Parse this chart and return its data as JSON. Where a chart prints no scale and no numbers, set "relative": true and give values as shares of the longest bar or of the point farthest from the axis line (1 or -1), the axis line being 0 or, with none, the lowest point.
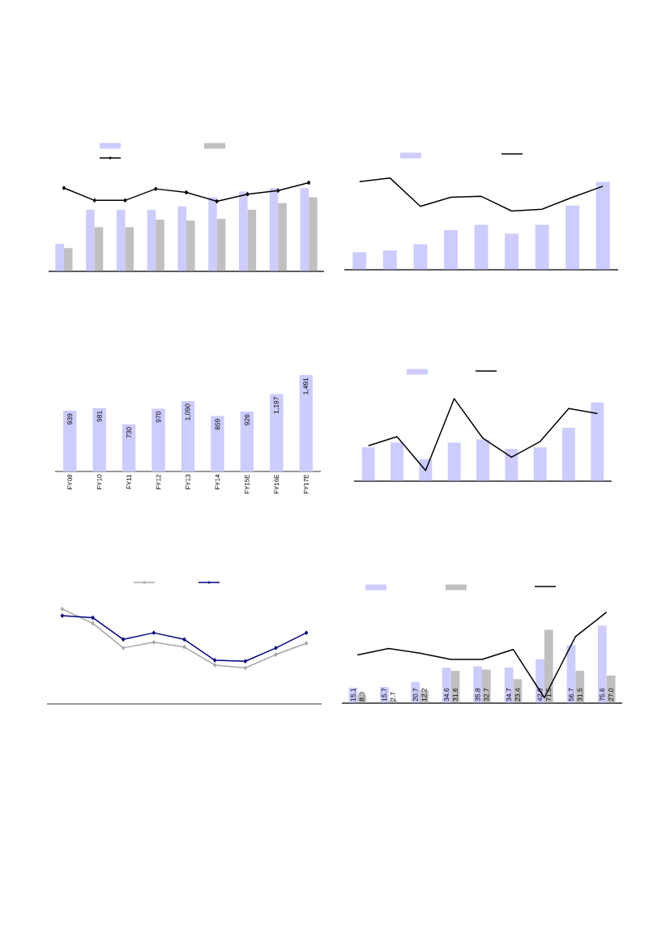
{
  "chart_data": [
    {
      "type": "bar",
      "relative": true,
      "categories": [
        null,
        null,
        null,
        null,
        null,
        null,
        null,
        null,
        null
      ],
      "series": [
        {
          "color": "#ccccff",
          "values": [
            0.33,
            0.74,
            0.74,
            0.74,
            0.78,
            0.89,
            0.96,
            1.0,
            1.0
          ]
        },
        {
          "color": "#c0c0c0",
          "values": [
            0.28,
            0.53,
            0.53,
            0.62,
            0.61,
            0.63,
            0.74,
            0.82,
            0.89
          ]
        }
      ]
    },
    {
      "type": "line",
      "relative": true,
      "marker": "diamond",
      "categories": [
        null,
        null,
        null,
        null,
        null,
        null,
        null,
        null,
        null
      ],
      "series": [
        {
          "color": "#000000",
          "values": [
            0.94,
            0.8,
            0.8,
            0.93,
            0.89,
            0.79,
            0.87,
            0.91,
            1.0
          ]
        }
      ]
    },
    {
      "type": "bar",
      "relative": true,
      "categories": [
        null,
        null,
        null,
        null,
        null,
        null,
        null,
        null,
        null
      ],
      "series": [
        {
          "color": "#ccccff",
          "values": [
            0.2,
            0.22,
            0.29,
            0.45,
            0.51,
            0.41,
            0.51,
            0.73,
            1.0
          ]
        }
      ]
    },
    {
      "type": "line",
      "relative": true,
      "categories": [
        null,
        null,
        null,
        null,
        null,
        null,
        null,
        null,
        null
      ],
      "series": [
        {
          "color": "#000000",
          "values": [
            0.96,
            1.0,
            0.69,
            0.79,
            0.8,
            0.64,
            0.66,
            0.79,
            0.91
          ]
        }
      ]
    },
    {
      "type": "bar",
      "tick_labels": "x",
      "categories": [
        "FY09",
        "FY10",
        "FY11",
        "FY12",
        "FY13",
        "FY14",
        "FY15E",
        "FY16E",
        "FY17E"
      ],
      "series": [
        {
          "color": "#ccccff",
          "values": [
            939,
            981,
            730,
            970,
            1090,
            859,
            926,
            1197,
            1491
          ],
          "value_labels": [
            "939",
            "981",
            "730",
            "970",
            "1,090",
            "859",
            "926",
            "1,197",
            "1,491"
          ]
        }
      ]
    },
    {
      "type": "bar",
      "relative": true,
      "categories": [
        null,
        null,
        null,
        null,
        null,
        null,
        null,
        null,
        null
      ],
      "series": [
        {
          "color": "#ccccff",
          "values": [
            0.43,
            0.49,
            0.28,
            0.49,
            0.53,
            0.41,
            0.43,
            0.68,
            1.0
          ]
        }
      ]
    },
    {
      "type": "line",
      "relative": true,
      "categories": [
        null,
        null,
        null,
        null,
        null,
        null,
        null,
        null,
        null
      ],
      "series": [
        {
          "color": "#000000",
          "values": [
            0.43,
            0.54,
            0.13,
            1.0,
            0.52,
            0.29,
            0.48,
            0.88,
            0.82
          ]
        }
      ]
    },
    {
      "type": "line",
      "relative": true,
      "marker": "diamond",
      "categories": [
        null,
        null,
        null,
        null,
        null,
        null,
        null,
        null,
        null
      ],
      "series": [
        {
          "color": "#a6a6a6",
          "values": [
            1.0,
            0.85,
            0.59,
            0.65,
            0.6,
            0.41,
            0.38,
            0.52,
            0.64
          ]
        },
        {
          "color": "#000080",
          "values": [
            0.93,
            0.91,
            0.68,
            0.75,
            0.68,
            0.46,
            0.45,
            0.59,
            0.75
          ]
        }
      ]
    },
    {
      "type": "bar",
      "tick_labels": false,
      "categories": [
        null,
        null,
        null,
        null,
        null,
        null,
        null,
        null,
        null
      ],
      "series": [
        {
          "color": "#ccccff",
          "values": [
            15.1,
            15.7,
            20.7,
            34.6,
            35.8,
            34.7,
            42.8,
            56.7,
            75.6
          ],
          "value_labels": [
            "15.1",
            "15.7",
            "20.7",
            "34.6",
            "35.8",
            "34.7",
            "42.8",
            "56.7",
            "75.6"
          ]
        },
        {
          "color": "#c0c0c0",
          "values": [
            8.3,
            2.7,
            12.2,
            31.6,
            32.7,
            23.4,
            71.5,
            31.5,
            27.0
          ],
          "value_labels": [
            "8.3",
            "2.7",
            "12.2",
            "31.6",
            "32.7",
            "23.4",
            "71.5",
            "31.5",
            "27.0"
          ]
        }
      ]
    },
    {
      "type": "line",
      "relative": true,
      "categories": [
        null,
        null,
        null,
        null,
        null,
        null,
        null,
        null,
        null
      ],
      "series": [
        {
          "color": "#000000",
          "values": [
            0.53,
            0.6,
            0.55,
            0.48,
            0.48,
            0.59,
            0.06,
            0.73,
            1.0
          ]
        }
      ]
    }
  ]
}
